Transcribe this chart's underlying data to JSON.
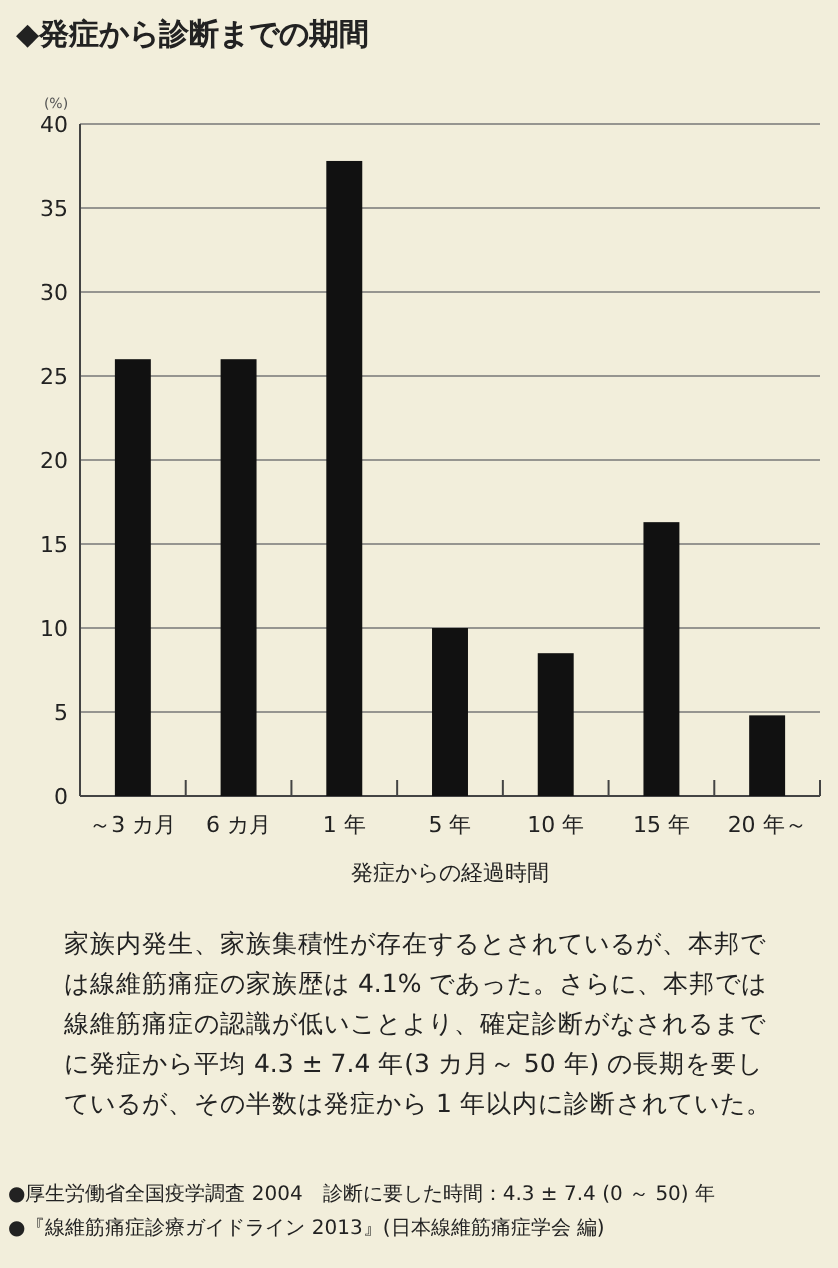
{
  "chart_data": {
    "type": "bar",
    "title": "◆発症から診断までの期間",
    "ylabel": "(%)",
    "xlabel": "発症からの経過時間",
    "categories": [
      "～3 カ月",
      "6 カ月",
      "1 年",
      "5 年",
      "10 年",
      "15 年",
      "20 年～"
    ],
    "values": [
      26,
      26,
      37.8,
      10,
      8.5,
      16.3,
      4.8
    ],
    "color": "#111111",
    "ylim": [
      0,
      40
    ],
    "yticks": [
      0,
      5,
      10,
      15,
      20,
      25,
      30,
      35,
      40
    ],
    "grid": "y",
    "annotations": [
      "家族内発生、家族集積性が存在するとされているが、本邦では線維筋痛症の家族歴は 4.1% であった。さらに、本邦では線維筋痛症の認識が低いことより、確定診断がなされるまでに発症から平均 4.3 ± 7.4 年(3 カ月～ 50 年) の長期を要しているが、その半数は発症から 1 年以内に診断されていた。",
      "●厚生労働省全国疫学調査 2004　診断に要した時間：4.3 ± 7.4 (0 ～ 50) 年",
      "●『線維筋痛症診療ガイドライン 2013』(日本線維筋痛症学会 編)"
    ]
  }
}
